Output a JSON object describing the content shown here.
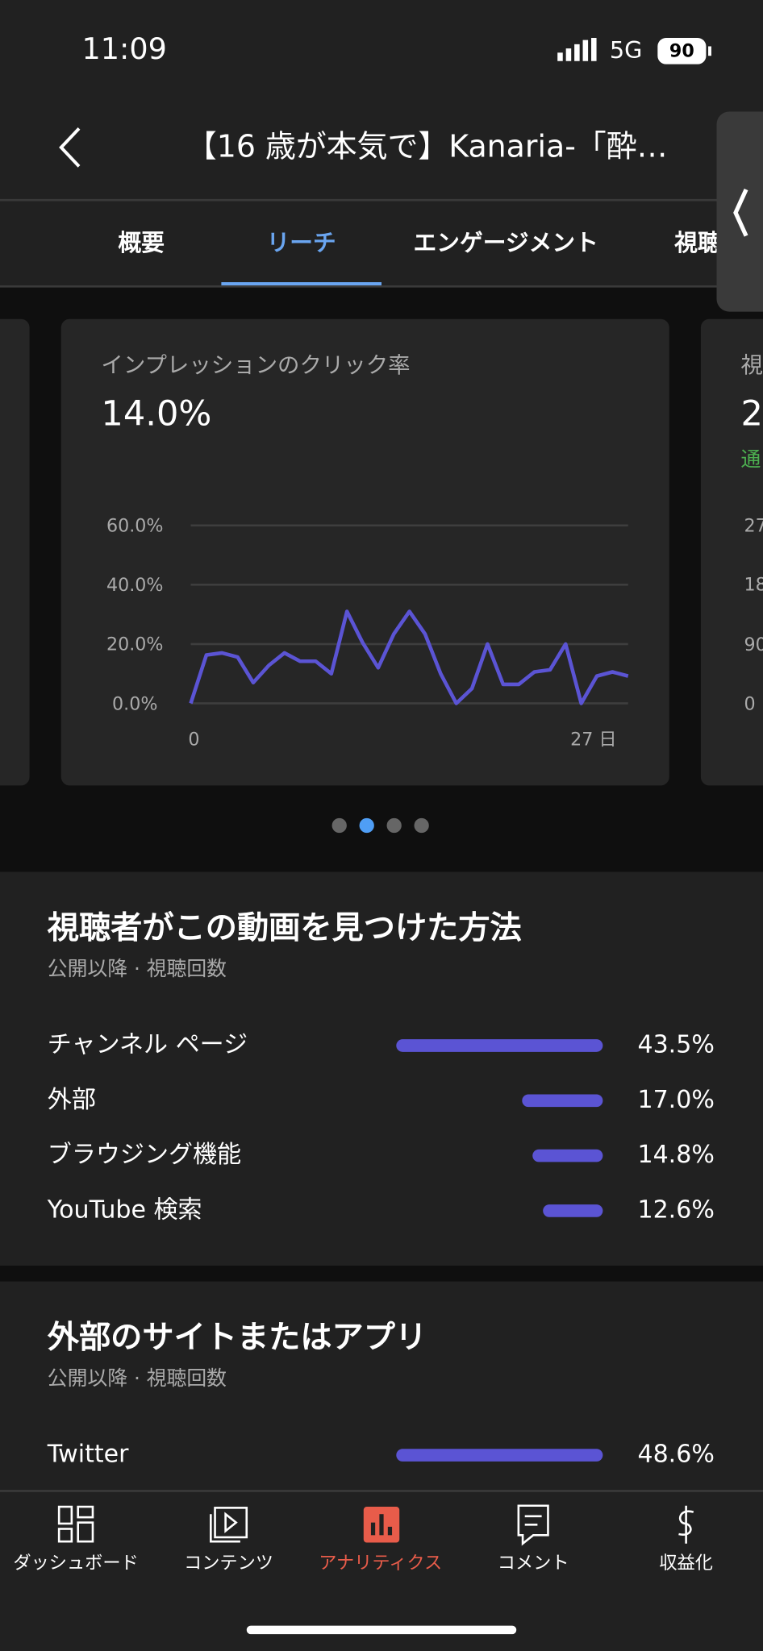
{
  "status_bar": {
    "time": "11:09",
    "network": "5G",
    "battery": "90"
  },
  "header": {
    "title": "【16 歳が本気で】Kanaria-「酔…"
  },
  "tabs": {
    "items": [
      "概要",
      "リーチ",
      "エンゲージメント",
      "視聴"
    ],
    "active": 1
  },
  "card": {
    "title": "インプレッションのクリック率",
    "value": "14.0%",
    "chart": {
      "type": "line",
      "color": "#5b54d4",
      "x": [
        0,
        1,
        2,
        3,
        4,
        5,
        6,
        7,
        8,
        9,
        10,
        11,
        12,
        13,
        14,
        15,
        16,
        17,
        18,
        19,
        20,
        21,
        22,
        23,
        24,
        25,
        26,
        27,
        28
      ],
      "values": [
        0,
        16.3,
        17,
        15.6,
        7,
        12.8,
        17,
        14.2,
        14.2,
        10,
        31,
        20.5,
        12,
        23.4,
        31,
        23.4,
        10,
        0,
        5,
        20,
        6.4,
        6.4,
        10.6,
        11.3,
        20,
        0,
        9.2,
        10.6,
        9.2
      ],
      "xlim": [
        0,
        28
      ],
      "ylim": [
        0,
        60
      ],
      "yticks": [
        {
          "value": 0,
          "label": "0.0%"
        },
        {
          "value": 20,
          "label": "20.0%"
        },
        {
          "value": 40,
          "label": "40.0%"
        },
        {
          "value": 60,
          "label": "60.0%"
        }
      ],
      "xticks": [
        0,
        {
          "value": 27,
          "label": "27 日"
        }
      ],
      "grid": true
    }
  },
  "next_card": {
    "title": "視",
    "value": "2",
    "note": "通",
    "ticks": [
      "27",
      "18",
      "90",
      "0"
    ]
  },
  "pager": {
    "count": 4,
    "active": 1
  },
  "sections": [
    {
      "title": "視聴者がこの動画を見つけた方法",
      "subtitle": "公開以降 · 視聴回数",
      "color": "#5b54d4",
      "rows": [
        {
          "label": "チャンネル ページ",
          "value": 43.5,
          "value_label": "43.5%"
        },
        {
          "label": "外部",
          "value": 17.0,
          "value_label": "17.0%"
        },
        {
          "label": "ブラウジング機能",
          "value": 14.8,
          "value_label": "14.8%"
        },
        {
          "label": "YouTube 検索",
          "value": 12.6,
          "value_label": "12.6%"
        }
      ]
    },
    {
      "title": "外部のサイトまたはアプリ",
      "subtitle": "公開以降 · 視聴回数",
      "color": "#5b54d4",
      "rows": [
        {
          "label": "Twitter",
          "value": 48.6,
          "value_label": "48.6%"
        }
      ]
    }
  ],
  "nav": {
    "items": [
      "ダッシュボード",
      "コンテンツ",
      "アナリティクス",
      "コメント",
      "収益化"
    ],
    "active": 2
  }
}
